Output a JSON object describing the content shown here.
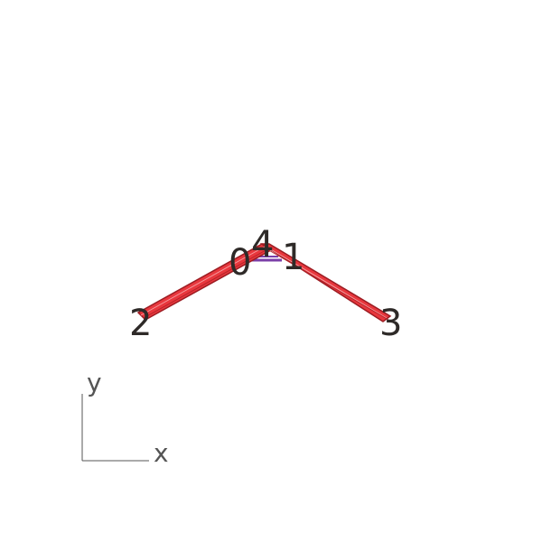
{
  "nodes": [
    {
      "id": "0",
      "label": "0"
    },
    {
      "id": "4",
      "label": "4"
    },
    {
      "id": "1",
      "label": "1"
    },
    {
      "id": "2",
      "label": "2"
    },
    {
      "id": "3",
      "label": "3"
    }
  ],
  "axes": {
    "y_label": "y",
    "x_label": "x"
  },
  "colors": {
    "member_fill": "#e8373d",
    "member_edge": "#9c1c22",
    "connector": "#7b3fa8",
    "label": "#2e2a28",
    "axis": "#555555"
  }
}
